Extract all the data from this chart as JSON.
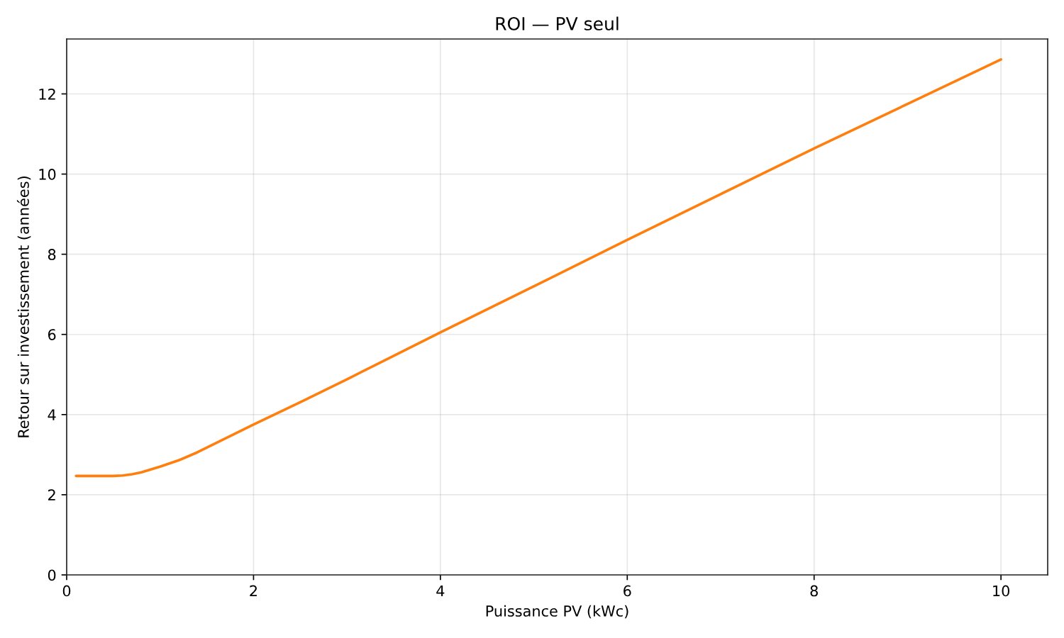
{
  "chart_data": {
    "type": "line",
    "title": "ROI — PV seul",
    "xlabel": "Puissance PV (kWc)",
    "ylabel": "Retour sur investissement (années)",
    "x": [
      0.1,
      0.3,
      0.5,
      0.6,
      0.7,
      0.8,
      0.9,
      1.0,
      1.2,
      1.4,
      1.6,
      1.8,
      2.0,
      2.5,
      3.0,
      4.0,
      5.0,
      6.0,
      7.0,
      8.0,
      9.0,
      10.0
    ],
    "series": [
      {
        "color": "#ff7f0e",
        "values": [
          2.47,
          2.47,
          2.47,
          2.48,
          2.51,
          2.56,
          2.63,
          2.7,
          2.86,
          3.06,
          3.29,
          3.52,
          3.75,
          4.31,
          4.88,
          6.05,
          7.2,
          8.36,
          9.5,
          10.64,
          11.75,
          12.86
        ]
      }
    ],
    "xlim": [
      0,
      10.5
    ],
    "ylim": [
      0,
      13.37
    ],
    "xticks": [
      0,
      2,
      4,
      6,
      8,
      10
    ],
    "yticks": [
      0,
      2,
      4,
      6,
      8,
      10,
      12
    ],
    "grid": true,
    "marker": "none",
    "line_style": "solid"
  }
}
